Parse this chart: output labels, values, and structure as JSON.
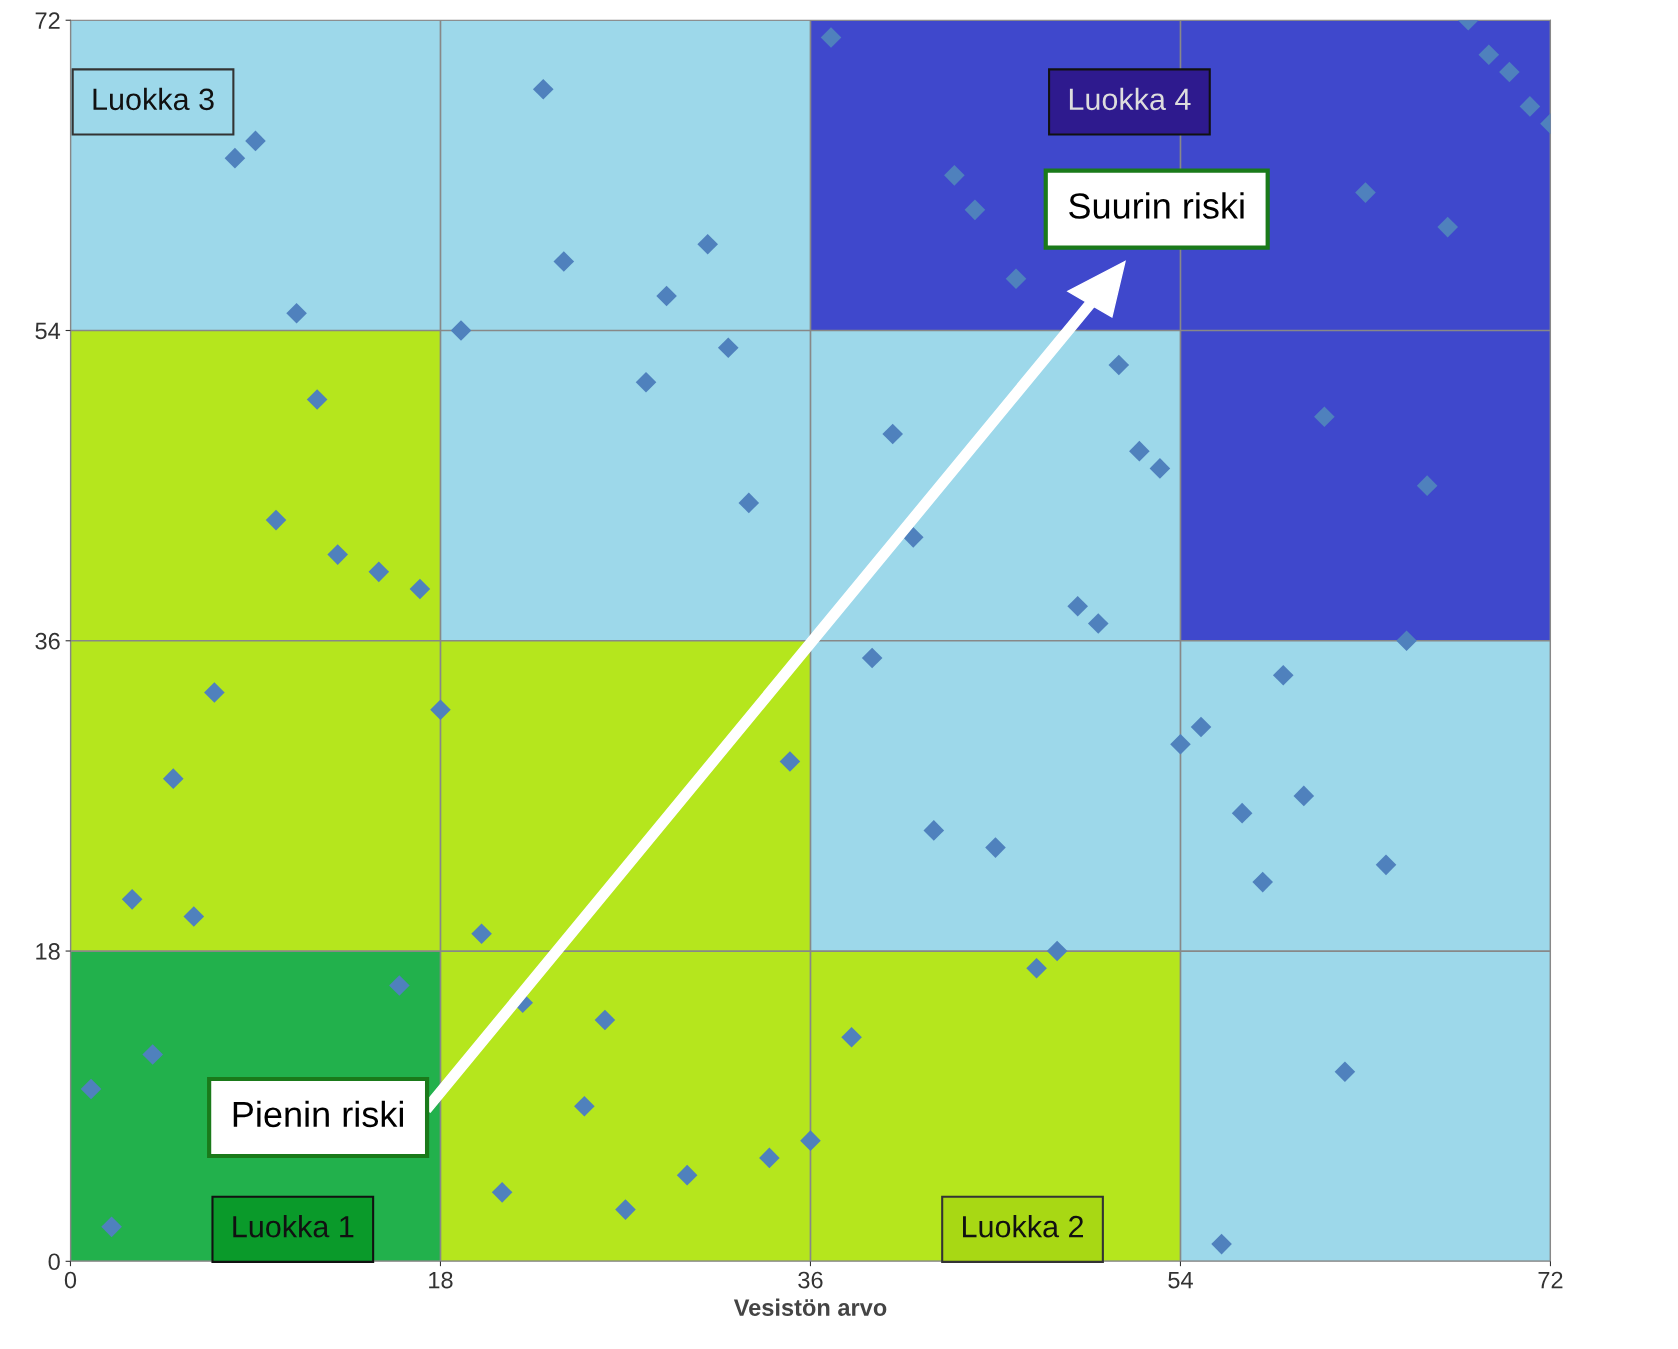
{
  "chart_data": {
    "type": "scatter",
    "xlabel": "Vesistön arvo",
    "xlim": [
      0,
      72
    ],
    "ylim": [
      0,
      72
    ],
    "xticks": [
      0,
      18,
      36,
      54,
      72
    ],
    "yticks": [
      0,
      18,
      36,
      54,
      72
    ],
    "grid": true,
    "marker": "diamond",
    "series": [
      {
        "color": "#4f81bd",
        "x": [
          1,
          2,
          3,
          4,
          5,
          6,
          7,
          8,
          9,
          10,
          11,
          12,
          13,
          15,
          16,
          17,
          18,
          19,
          20,
          21,
          22,
          23,
          24,
          25,
          26,
          27,
          28,
          29,
          30,
          31,
          32,
          33,
          34,
          35,
          36,
          37,
          38,
          39,
          40,
          41,
          42,
          43,
          44,
          45,
          46,
          47,
          48,
          49,
          50,
          51,
          52,
          53,
          54,
          55,
          56,
          57,
          58,
          59,
          60,
          61,
          62,
          63,
          64,
          65,
          66,
          67,
          68,
          69,
          70,
          71,
          72
        ],
        "values": [
          10,
          2,
          21,
          12,
          28,
          20,
          33,
          64,
          65,
          43,
          55,
          50,
          41,
          40,
          16,
          39,
          32,
          54,
          19,
          4,
          15,
          68,
          58,
          9,
          14,
          3,
          51,
          56,
          5,
          59,
          53,
          44,
          6,
          29,
          7,
          71,
          13,
          35,
          48,
          42,
          25,
          63,
          61,
          24,
          57,
          17,
          18,
          38,
          37,
          52,
          47,
          46,
          30,
          31,
          1,
          26,
          22,
          34,
          27,
          49,
          11,
          62,
          23,
          36,
          45,
          60,
          72,
          70,
          69,
          67,
          66
        ]
      }
    ],
    "annotations": [
      "Luokka 3",
      "Luokka 4",
      "Suurin riski",
      "Pienin riski",
      "Luokka 1",
      "Luokka 2"
    ]
  }
}
